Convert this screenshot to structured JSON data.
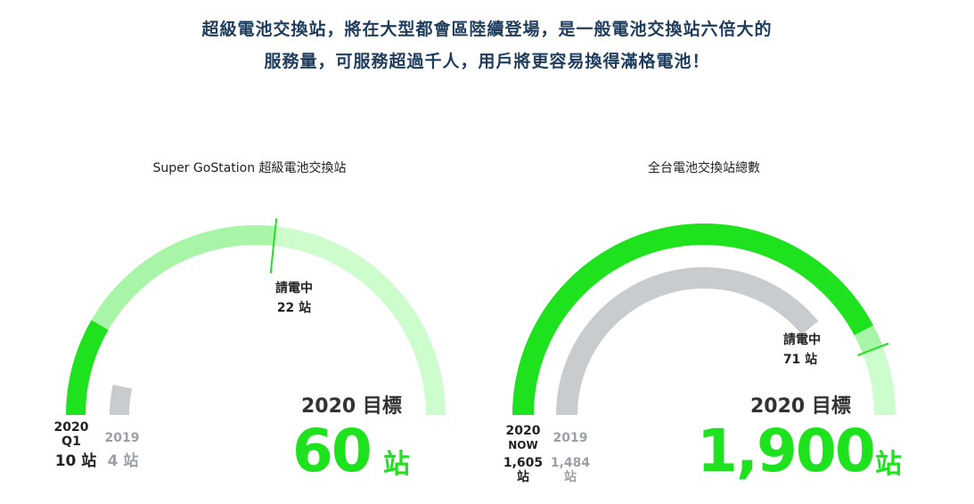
{
  "headline": {
    "line1": "超級電池交換站，將在大型都會區陸續登場，是一般電池交換站六倍大的",
    "line2": "服務量，可服務超過千人，用戶將更容易換得滿格電池！"
  },
  "colors": {
    "green": "#1ee21e",
    "green_mid": "#a8f5a8",
    "green_light": "#cdfccd",
    "grey": "#c8cccf",
    "headline": "#1e3d5c"
  },
  "chart_data": [
    {
      "type": "gauge",
      "title": "Super GoStation 超級電池交換站",
      "unit": "站",
      "target_value": 60,
      "target_label": "2020 目標",
      "target_display": "60",
      "current": {
        "label_line1": "2020",
        "label_line2": "Q1",
        "value": 10,
        "display": "10 站"
      },
      "previous": {
        "label": "2019",
        "value": 4,
        "display": "4 站"
      },
      "charging": {
        "label": "請電中",
        "value": 22,
        "display": "22 站"
      }
    },
    {
      "type": "gauge",
      "title": "全台電池交換站總數",
      "unit": "站",
      "target_value": 1900,
      "target_label": "2020 目標",
      "target_display": "1,900",
      "current": {
        "label_line1": "2020",
        "label_line2": "NOW",
        "value": 1605,
        "display_num": "1,605",
        "display_unit": "站"
      },
      "previous": {
        "label": "2019",
        "value": 1484,
        "display_num": "1,484",
        "display_unit": "站"
      },
      "charging": {
        "label": "請電中",
        "value": 71,
        "display": "71 站"
      }
    }
  ]
}
